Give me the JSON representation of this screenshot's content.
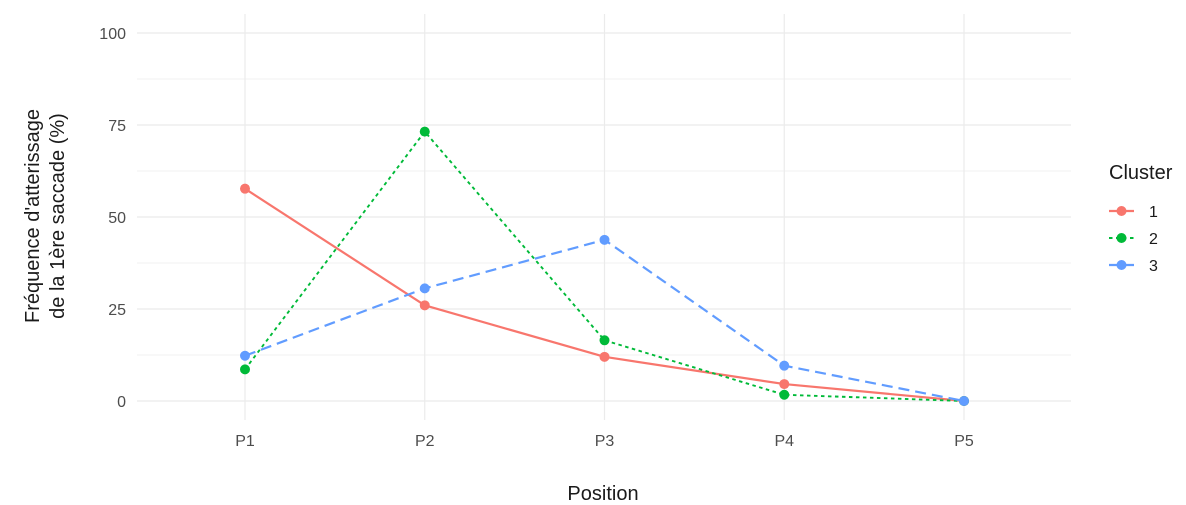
{
  "chart_data": {
    "type": "line",
    "xlabel": "Position",
    "ylabel_lines": [
      "Fréquence d'atterissage",
      "de la 1ère saccade (%)"
    ],
    "categories": [
      "P1",
      "P2",
      "P3",
      "P4",
      "P5"
    ],
    "ylim": [
      0,
      100
    ],
    "yticks": [
      0,
      25,
      50,
      75,
      100
    ],
    "grid": true,
    "legend": {
      "title": "Cluster",
      "position": "right"
    },
    "series": [
      {
        "name": "1",
        "values": [
          57.7,
          26.0,
          12.0,
          4.6,
          0.0
        ],
        "color": "#F8766D",
        "linestyle": "solid"
      },
      {
        "name": "2",
        "values": [
          8.6,
          73.2,
          16.5,
          1.7,
          0.0
        ],
        "color": "#00BA38",
        "linestyle": "dotted"
      },
      {
        "name": "3",
        "values": [
          12.3,
          30.6,
          43.8,
          9.6,
          0.0
        ],
        "color": "#619CFF",
        "linestyle": "dashed"
      }
    ]
  }
}
